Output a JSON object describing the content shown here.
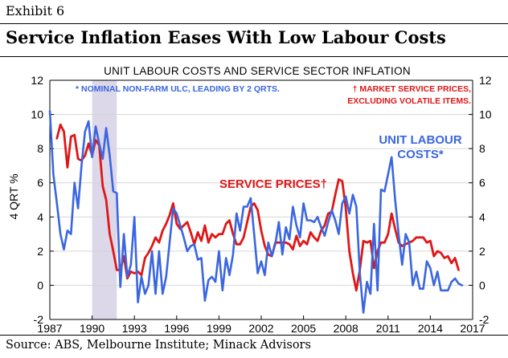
{
  "exhibit": "Exhibit 6",
  "headline": "Service Inflation Eases With Low Labour Costs",
  "source": "Source: ABS, Melbourne Institute; Minack Advisors",
  "chart_data": {
    "type": "line",
    "title": "UNIT LABOUR COSTS AND SERVICE SECTOR INFLATION",
    "ylabel": "4 QRT %",
    "xlabel": "",
    "ylim": [
      -2,
      12
    ],
    "xlim": [
      1987,
      2017
    ],
    "yticks": [
      12,
      10,
      8,
      6,
      4,
      2,
      0,
      -2
    ],
    "xticks": [
      1987,
      1990,
      1993,
      1996,
      1999,
      2002,
      2005,
      2008,
      2011,
      2014,
      2017
    ],
    "shaded_region": [
      1990.0,
      1991.75
    ],
    "notes": {
      "left": "* NOMINAL NON-FARM ULC, LEADING BY 2 QRTS.",
      "right_line1": "† MARKET SERVICE PRICES,",
      "right_line2": "EXCLUDING VOLATILE ITEMS."
    },
    "series": [
      {
        "name": "UNIT LABOUR COSTS*",
        "label_line1": "UNIT LABOUR",
        "label_line2": "COSTS*",
        "color": "#3a66e0",
        "x": [
          1987.0,
          1987.25,
          1987.5,
          1987.75,
          1988.0,
          1988.25,
          1988.5,
          1988.75,
          1989.0,
          1989.25,
          1989.5,
          1989.75,
          1990.0,
          1990.25,
          1990.5,
          1990.75,
          1991.0,
          1991.25,
          1991.5,
          1991.75,
          1992.0,
          1992.25,
          1992.5,
          1992.75,
          1993.0,
          1993.25,
          1993.5,
          1993.75,
          1994.0,
          1994.25,
          1994.5,
          1994.75,
          1995.0,
          1995.25,
          1995.5,
          1995.75,
          1996.0,
          1996.25,
          1996.5,
          1996.75,
          1997.0,
          1997.25,
          1997.5,
          1997.75,
          1998.0,
          1998.25,
          1998.5,
          1998.75,
          1999.0,
          1999.25,
          1999.5,
          1999.75,
          2000.0,
          2000.25,
          2000.5,
          2000.75,
          2001.0,
          2001.25,
          2001.5,
          2001.75,
          2002.0,
          2002.25,
          2002.5,
          2002.75,
          2003.0,
          2003.25,
          2003.5,
          2003.75,
          2004.0,
          2004.25,
          2004.5,
          2004.75,
          2005.0,
          2005.25,
          2005.5,
          2005.75,
          2006.0,
          2006.25,
          2006.5,
          2006.75,
          2007.0,
          2007.25,
          2007.5,
          2007.75,
          2008.0,
          2008.25,
          2008.5,
          2008.75,
          2009.0,
          2009.25,
          2009.5,
          2009.75,
          2010.0,
          2010.25,
          2010.5,
          2010.75,
          2011.0,
          2011.25,
          2011.5,
          2011.75,
          2012.0,
          2012.25,
          2012.5,
          2012.75,
          2013.0,
          2013.25,
          2013.5,
          2013.75,
          2014.0,
          2014.25,
          2014.5,
          2014.75,
          2015.0,
          2015.25,
          2015.5,
          2015.75,
          2016.0,
          2016.25
        ],
        "values": [
          10.2,
          6.5,
          4.8,
          3.0,
          2.1,
          3.2,
          3.0,
          6.0,
          4.5,
          7.0,
          9.0,
          9.6,
          7.5,
          9.3,
          8.3,
          7.4,
          9.2,
          7.6,
          5.5,
          5.4,
          -0.1,
          3.0,
          0.5,
          1.2,
          4.0,
          -1.0,
          0.5,
          -0.5,
          0.0,
          2.0,
          -0.5,
          2.0,
          -0.5,
          0.5,
          2.5,
          4.5,
          4.2,
          3.5,
          2.8,
          2.0,
          2.3,
          2.4,
          1.5,
          1.6,
          -0.9,
          0.3,
          0.5,
          0.2,
          2.0,
          -0.3,
          1.6,
          0.6,
          1.8,
          4.2,
          3.2,
          4.6,
          4.6,
          5.1,
          3.0,
          0.7,
          1.4,
          0.6,
          2.5,
          1.7,
          2.4,
          3.7,
          1.8,
          3.4,
          2.7,
          4.6,
          3.5,
          2.8,
          4.8,
          3.8,
          3.8,
          3.7,
          4.0,
          3.4,
          2.9,
          3.7,
          4.4,
          3.8,
          3.0,
          4.8,
          5.2,
          4.2,
          5.3,
          4.6,
          0.7,
          -1.6,
          0.2,
          -0.5,
          3.6,
          -0.3,
          5.6,
          5.5,
          6.5,
          7.5,
          5.0,
          3.0,
          1.2,
          3.0,
          2.5,
          0.0,
          0.8,
          -0.2,
          -0.2,
          1.4,
          1.0,
          0.0,
          0.8,
          -0.3,
          -0.3,
          -0.3,
          0.2,
          0.4,
          0.1,
          0.0
        ]
      },
      {
        "name": "SERVICE PRICES†",
        "label": "SERVICE PRICES†",
        "color": "#e01616",
        "x": [
          1987.5,
          1987.75,
          1988.0,
          1988.25,
          1988.5,
          1988.75,
          1989.0,
          1989.25,
          1989.5,
          1989.75,
          1990.0,
          1990.25,
          1990.5,
          1990.75,
          1991.0,
          1991.25,
          1991.5,
          1991.75,
          1992.0,
          1992.25,
          1992.5,
          1992.75,
          1993.0,
          1993.25,
          1993.5,
          1993.75,
          1994.0,
          1994.25,
          1994.5,
          1994.75,
          1995.0,
          1995.25,
          1995.5,
          1995.75,
          1996.0,
          1996.25,
          1996.5,
          1996.75,
          1997.0,
          1997.25,
          1997.5,
          1997.75,
          1998.0,
          1998.25,
          1998.5,
          1998.75,
          1999.0,
          1999.25,
          1999.5,
          1999.75,
          2000.0,
          2000.25,
          2000.5,
          2000.75,
          2001.0,
          2001.25,
          2001.5,
          2001.75,
          2002.0,
          2002.25,
          2002.5,
          2002.75,
          2003.0,
          2003.25,
          2003.5,
          2003.75,
          2004.0,
          2004.25,
          2004.5,
          2004.75,
          2005.0,
          2005.25,
          2005.5,
          2005.75,
          2006.0,
          2006.25,
          2006.5,
          2006.75,
          2007.0,
          2007.25,
          2007.5,
          2007.75,
          2008.0,
          2008.25,
          2008.5,
          2008.75,
          2009.0,
          2009.25,
          2009.5,
          2009.75,
          2010.0,
          2010.25,
          2010.5,
          2010.75,
          2011.0,
          2011.25,
          2011.5,
          2011.75,
          2012.0,
          2012.25,
          2012.5,
          2012.75,
          2013.0,
          2013.25,
          2013.5,
          2013.75,
          2014.0,
          2014.25,
          2014.5,
          2014.75,
          2015.0,
          2015.25,
          2015.5,
          2015.75,
          2016.0
        ],
        "values": [
          8.6,
          9.4,
          9.0,
          6.9,
          8.7,
          8.8,
          7.4,
          7.3,
          7.6,
          8.3,
          7.6,
          8.5,
          8.2,
          5.8,
          5.0,
          3.0,
          2.0,
          0.9,
          0.9,
          1.7,
          0.4,
          0.8,
          0.7,
          0.8,
          0.6,
          1.6,
          1.9,
          2.3,
          2.8,
          2.5,
          3.2,
          3.6,
          4.1,
          4.8,
          3.6,
          3.3,
          3.5,
          3.7,
          3.1,
          2.4,
          3.1,
          2.6,
          3.5,
          2.5,
          3.0,
          2.8,
          3.0,
          3.0,
          3.6,
          3.8,
          3.0,
          2.4,
          2.4,
          2.8,
          3.7,
          4.6,
          4.8,
          4.4,
          3.2,
          2.3,
          1.8,
          1.7,
          2.5,
          2.5,
          2.5,
          2.5,
          2.4,
          2.1,
          2.9,
          2.3,
          2.6,
          2.4,
          3.1,
          2.8,
          2.6,
          3.2,
          3.5,
          4.2,
          4.3,
          5.3,
          6.2,
          6.1,
          4.5,
          2.0,
          0.7,
          -0.3,
          0.9,
          2.6,
          2.5,
          2.6,
          1.0,
          2.0,
          2.5,
          2.5,
          3.0,
          4.2,
          3.3,
          2.5,
          2.3,
          2.4,
          2.5,
          2.6,
          2.8,
          2.8,
          2.8,
          2.5,
          2.6,
          1.7,
          2.0,
          1.9,
          1.6,
          1.7,
          1.3,
          1.6,
          0.9
        ]
      }
    ]
  }
}
